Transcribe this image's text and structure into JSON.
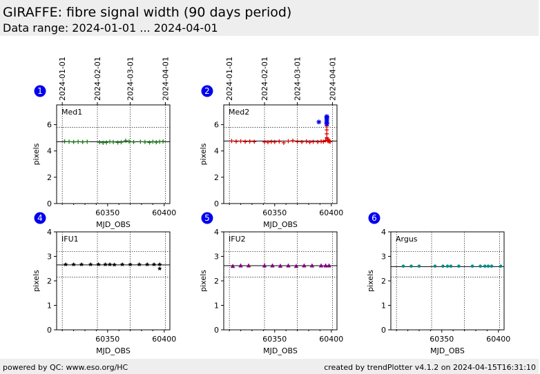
{
  "header": {
    "title": "GIRAFFE: fibre signal width (90 days period)",
    "subtitle": "Data range: 2024-01-01 ... 2024-04-01"
  },
  "footer": {
    "left": "powered by QC: www.eso.org/HC",
    "right": "created by trendPlotter v4.1.2 on 2024-04-15T16:31:10"
  },
  "colors": {
    "badge": "#0000ee",
    "med1": "#1a7a1a",
    "med2": "#dd0000",
    "med2_alt": "#0000ee",
    "ifu1": "#000000",
    "ifu2": "#800080",
    "argus": "#008b8b"
  },
  "chart_data": [
    {
      "type": "scatter",
      "panel": "1",
      "label": "Med1",
      "xlabel": "MJD_OBS",
      "ylabel": "pixels",
      "xlim": [
        60305,
        60405
      ],
      "ylim": [
        0,
        7.5
      ],
      "yticks": [
        0,
        2,
        4,
        6
      ],
      "xticks": [
        60350,
        60400
      ],
      "ref_line": 4.7,
      "dotted_lines": [
        5.8
      ],
      "date_ticks": [
        {
          "label": "2024-01-01",
          "mjd": 60310
        },
        {
          "label": "2024-02-01",
          "mjd": 60341
        },
        {
          "label": "2024-03-01",
          "mjd": 60370
        },
        {
          "label": "2024-04-01",
          "mjd": 60401
        }
      ],
      "series": [
        {
          "marker": "plus",
          "color": "#1a7a1a",
          "x": [
            60312,
            60316,
            60320,
            60324,
            60328,
            60332,
            60343,
            60346,
            60349,
            60352,
            60355,
            60359,
            60362,
            60366,
            60369,
            60373,
            60379,
            60383,
            60387,
            60390,
            60393,
            60396,
            60399
          ],
          "y": [
            4.72,
            4.7,
            4.68,
            4.7,
            4.68,
            4.7,
            4.66,
            4.62,
            4.64,
            4.7,
            4.68,
            4.64,
            4.66,
            4.78,
            4.72,
            4.68,
            4.7,
            4.68,
            4.64,
            4.7,
            4.66,
            4.7,
            4.72
          ]
        }
      ]
    },
    {
      "type": "scatter",
      "panel": "2",
      "label": "Med2",
      "xlabel": "MJD_OBS",
      "ylabel": "pixels",
      "xlim": [
        60305,
        60405
      ],
      "ylim": [
        0,
        7.5
      ],
      "yticks": [
        0,
        2,
        4,
        6
      ],
      "xticks": [
        60350,
        60400
      ],
      "ref_line": 4.75,
      "dotted_lines": [
        5.8
      ],
      "date_ticks": [
        {
          "label": "2024-01-01",
          "mjd": 60310
        },
        {
          "label": "2024-02-01",
          "mjd": 60341
        },
        {
          "label": "2024-03-01",
          "mjd": 60370
        },
        {
          "label": "2024-04-01",
          "mjd": 60401
        }
      ],
      "series": [
        {
          "marker": "plus",
          "color": "#dd0000",
          "x": [
            60312,
            60316,
            60320,
            60324,
            60328,
            60332,
            60341,
            60344,
            60347,
            60350,
            60354,
            60358,
            60362,
            60366,
            60370,
            60374,
            60378,
            60381,
            60384,
            60388,
            60391,
            60393,
            60395,
            60396,
            60396,
            60396,
            60396,
            60396,
            60397,
            60397,
            60397,
            60398,
            60399
          ],
          "y": [
            4.75,
            4.72,
            4.74,
            4.7,
            4.72,
            4.7,
            4.68,
            4.66,
            4.7,
            4.68,
            4.72,
            4.62,
            4.74,
            4.78,
            4.7,
            4.68,
            4.72,
            4.66,
            4.7,
            4.68,
            4.72,
            4.7,
            4.8,
            5.0,
            5.3,
            5.6,
            5.9,
            6.1,
            4.9,
            4.75,
            4.8,
            4.72,
            4.7
          ]
        },
        {
          "marker": "asterisk",
          "color": "#0000ee",
          "x": [
            60389,
            60396,
            60396,
            60396,
            60396,
            60396,
            60396,
            60396
          ],
          "y": [
            6.2,
            6.05,
            6.15,
            6.25,
            6.35,
            6.45,
            6.55,
            6.62
          ]
        }
      ]
    },
    {
      "type": "scatter",
      "panel": "4",
      "label": "IFU1",
      "xlabel": "MJD_OBS",
      "ylabel": "pixels",
      "xlim": [
        60305,
        60405
      ],
      "ylim": [
        0,
        4
      ],
      "yticks": [
        0,
        1,
        2,
        3,
        4
      ],
      "xticks": [
        60350,
        60400
      ],
      "ref_line": 2.65,
      "dotted_lines": [
        3.2,
        2.15
      ],
      "series": [
        {
          "marker": "star",
          "color": "#000000",
          "x": [
            60313,
            60320,
            60327,
            60335,
            60342,
            60348,
            60352,
            60356,
            60363,
            60370,
            60378,
            60385,
            60391,
            60396,
            60396
          ],
          "y": [
            2.67,
            2.67,
            2.67,
            2.67,
            2.67,
            2.67,
            2.67,
            2.66,
            2.67,
            2.67,
            2.67,
            2.67,
            2.67,
            2.67,
            2.5
          ]
        }
      ]
    },
    {
      "type": "scatter",
      "panel": "5",
      "label": "IFU2",
      "xlabel": "MJD_OBS",
      "ylabel": "pixels",
      "xlim": [
        60305,
        60405
      ],
      "ylim": [
        0,
        4
      ],
      "yticks": [
        0,
        1,
        2,
        3,
        4
      ],
      "xticks": [
        60350,
        60400
      ],
      "ref_line": 2.62,
      "dotted_lines": [
        3.2,
        2.15
      ],
      "series": [
        {
          "marker": "triangle",
          "color": "#800080",
          "x": [
            60313,
            60320,
            60327,
            60341,
            60348,
            60355,
            60362,
            60369,
            60376,
            60383,
            60391,
            60395,
            60398
          ],
          "y": [
            2.6,
            2.62,
            2.62,
            2.62,
            2.62,
            2.61,
            2.62,
            2.6,
            2.62,
            2.62,
            2.62,
            2.62,
            2.62
          ]
        }
      ]
    },
    {
      "type": "scatter",
      "panel": "6",
      "label": "Argus",
      "xlabel": "MJD_OBS",
      "ylabel": "pixels",
      "xlim": [
        60305,
        60405
      ],
      "ylim": [
        0,
        4
      ],
      "yticks": [
        0,
        1,
        2,
        3,
        4
      ],
      "xticks": [
        60350,
        60400
      ],
      "ref_line": 2.58,
      "dotted_lines": [
        3.2,
        2.15
      ],
      "series": [
        {
          "marker": "dot",
          "color": "#008b8b",
          "x": [
            60316,
            60323,
            60330,
            60344,
            60351,
            60355,
            60358,
            60365,
            60377,
            60384,
            60388,
            60391,
            60394,
            60402
          ],
          "y": [
            2.6,
            2.6,
            2.6,
            2.6,
            2.6,
            2.6,
            2.6,
            2.6,
            2.6,
            2.6,
            2.6,
            2.6,
            2.6,
            2.6
          ]
        }
      ]
    }
  ]
}
